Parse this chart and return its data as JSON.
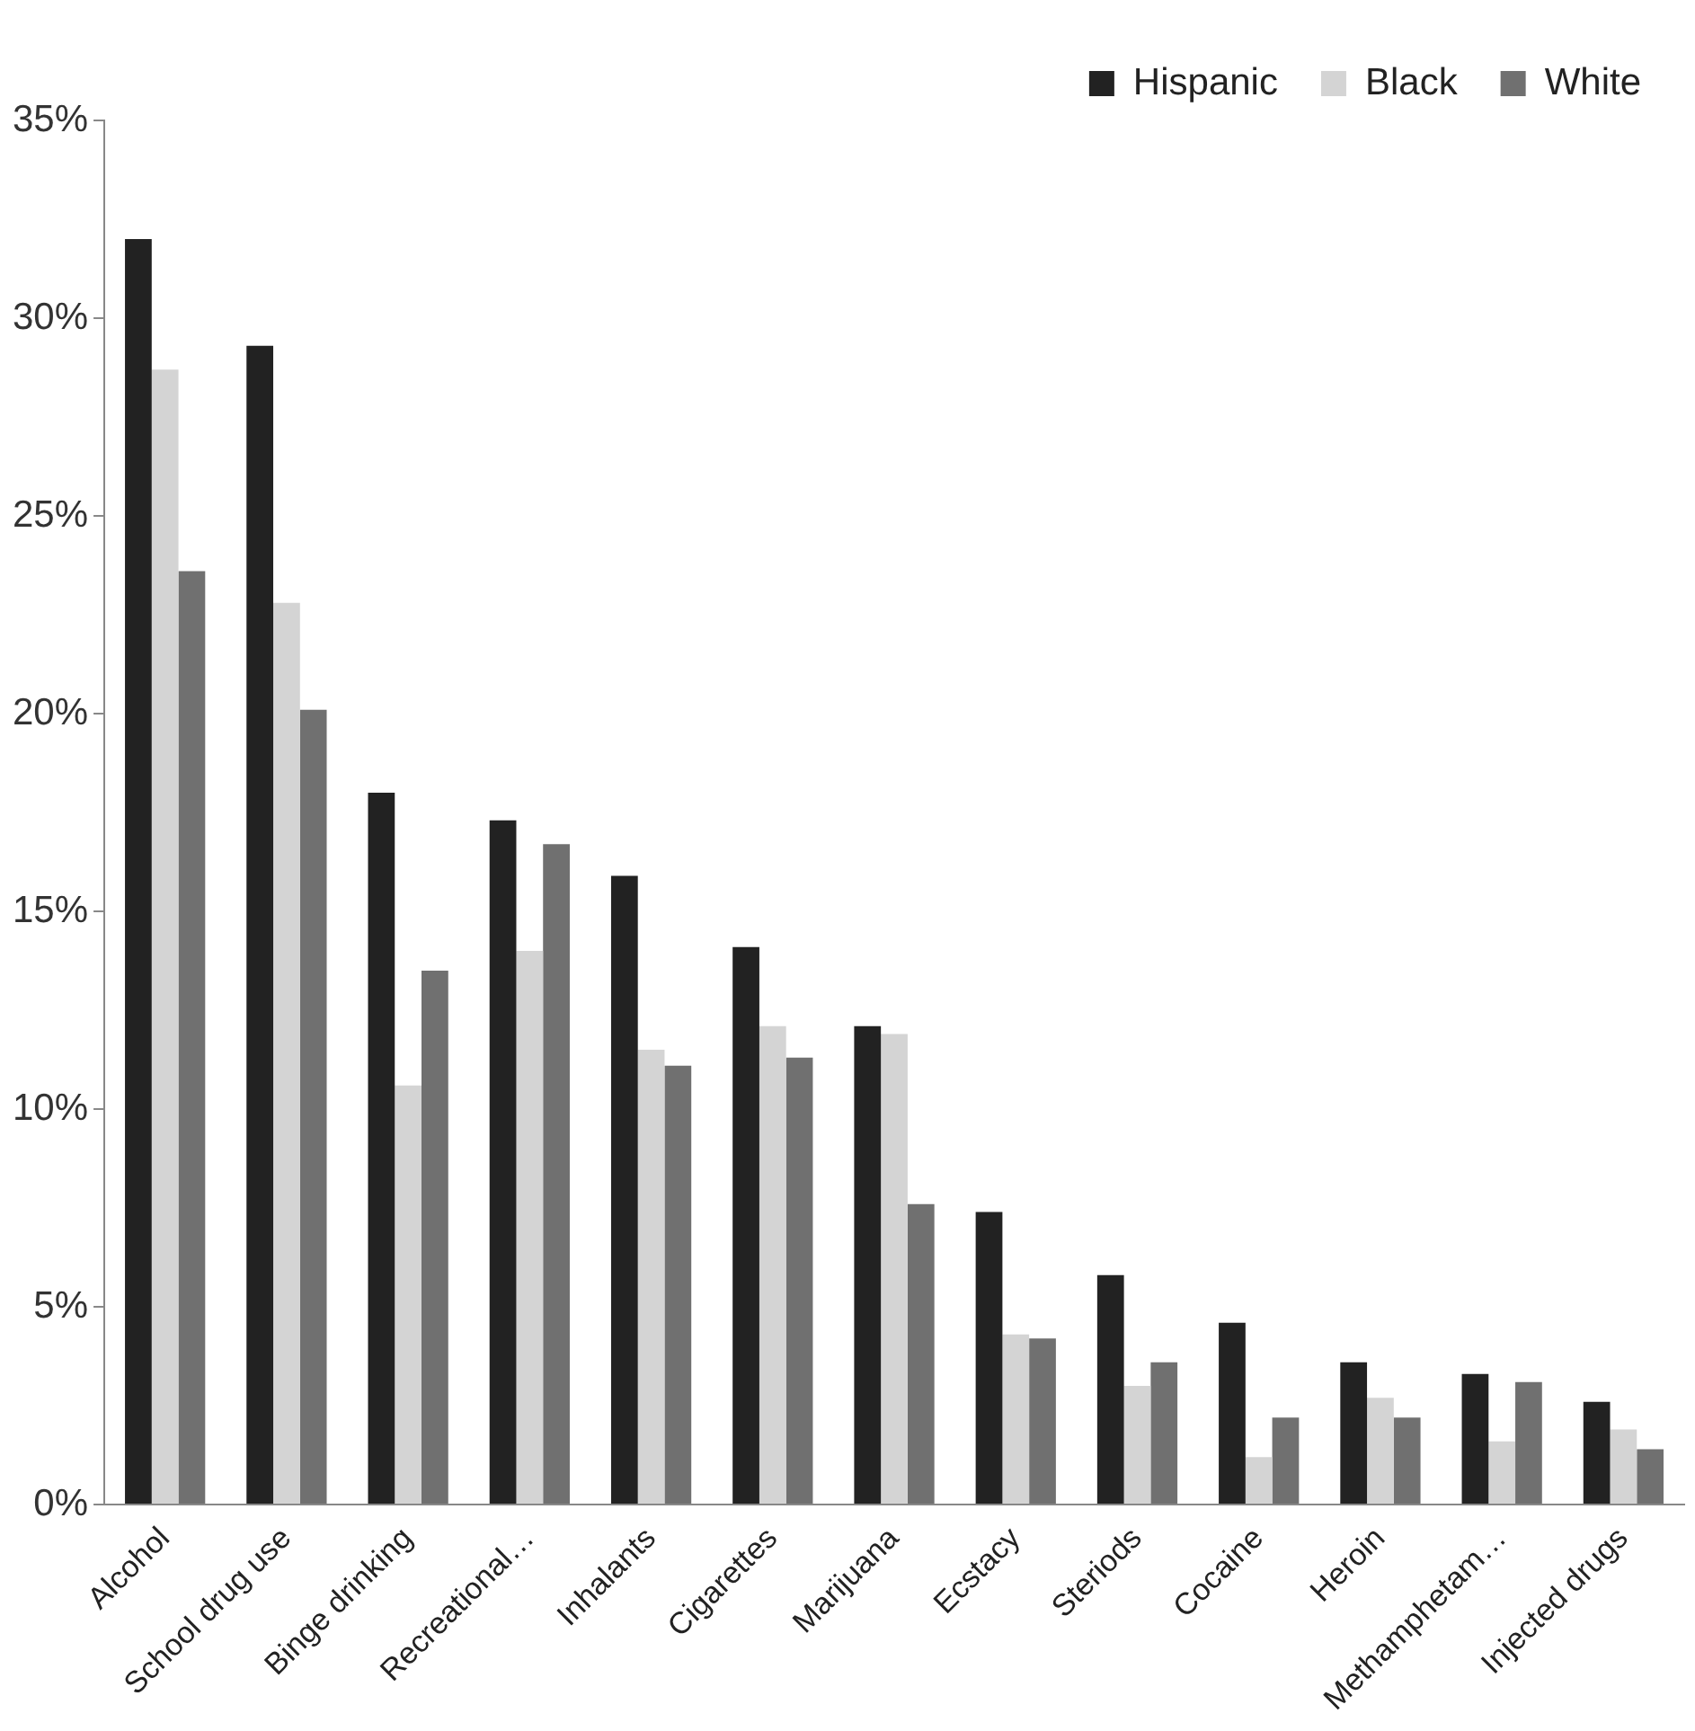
{
  "chart_data": {
    "type": "bar",
    "categories": [
      "Alcohol",
      "School drug use",
      "Binge drinking",
      "Recreational…",
      "Inhalants",
      "Cigarettes",
      "Marijuana",
      "Ecstacy",
      "Steriods",
      "Cocaine",
      "Heroin",
      "Methamphetam…",
      "Injected drugs"
    ],
    "series": [
      {
        "name": "Hispanic",
        "color": "#222222",
        "values": [
          32.0,
          29.3,
          18.0,
          17.3,
          15.9,
          14.1,
          12.1,
          7.4,
          5.8,
          4.6,
          3.6,
          3.3,
          2.6
        ]
      },
      {
        "name": "Black",
        "color": "#d4d4d4",
        "values": [
          28.7,
          22.8,
          10.6,
          14.0,
          11.5,
          12.1,
          11.9,
          4.3,
          3.0,
          1.2,
          2.7,
          1.6,
          1.9
        ]
      },
      {
        "name": "White",
        "color": "#707070",
        "values": [
          23.6,
          20.1,
          13.5,
          16.7,
          11.1,
          11.3,
          7.6,
          4.2,
          3.6,
          2.2,
          2.2,
          3.1,
          1.4
        ]
      }
    ],
    "ylim": [
      0,
      35
    ],
    "yticks": [
      {
        "value": 0,
        "label": "0%"
      },
      {
        "value": 5,
        "label": "5%"
      },
      {
        "value": 10,
        "label": "10%"
      },
      {
        "value": 15,
        "label": "15%"
      },
      {
        "value": 20,
        "label": "20%"
      },
      {
        "value": 25,
        "label": "25%"
      },
      {
        "value": 30,
        "label": "30%"
      },
      {
        "value": 35,
        "label": "35%"
      }
    ],
    "grid": false,
    "legend": "top right"
  }
}
